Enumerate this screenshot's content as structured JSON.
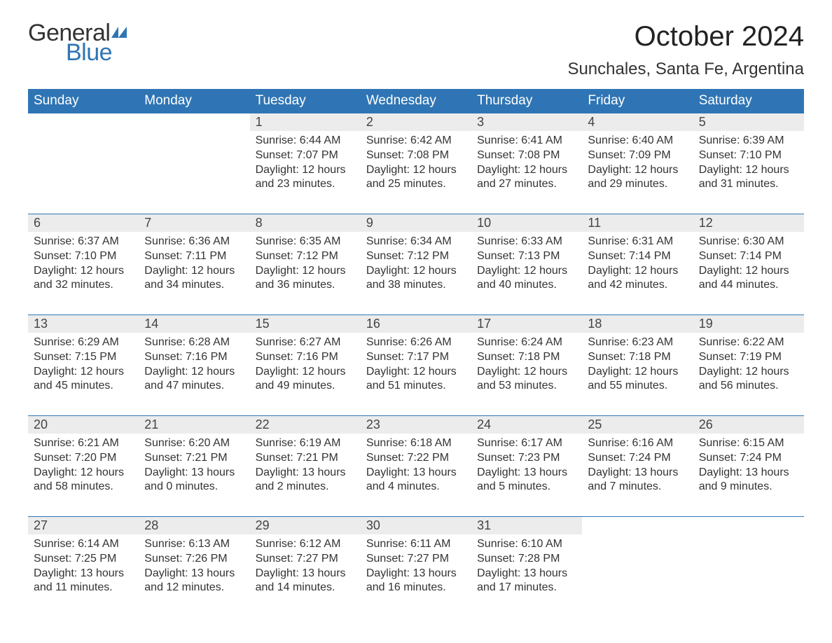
{
  "brand": {
    "word1": "General",
    "word2": "Blue",
    "flag_color": "#2f75b5"
  },
  "header": {
    "month_title": "October 2024",
    "location": "Sunchales, Santa Fe, Argentina"
  },
  "colors": {
    "header_bg": "#2f75b5",
    "header_text": "#ffffff",
    "daynum_bg": "#ececec",
    "daynum_border": "#2f75b5",
    "body_text": "#333333",
    "background": "#ffffff"
  },
  "typography": {
    "month_title_fontsize": 40,
    "location_fontsize": 24,
    "dayheader_fontsize": 19,
    "daynum_fontsize": 18,
    "cell_fontsize": 16
  },
  "calendar": {
    "day_headers": [
      "Sunday",
      "Monday",
      "Tuesday",
      "Wednesday",
      "Thursday",
      "Friday",
      "Saturday"
    ],
    "weeks": [
      [
        null,
        null,
        {
          "n": "1",
          "sunrise": "Sunrise: 6:44 AM",
          "sunset": "Sunset: 7:07 PM",
          "d1": "Daylight: 12 hours",
          "d2": "and 23 minutes."
        },
        {
          "n": "2",
          "sunrise": "Sunrise: 6:42 AM",
          "sunset": "Sunset: 7:08 PM",
          "d1": "Daylight: 12 hours",
          "d2": "and 25 minutes."
        },
        {
          "n": "3",
          "sunrise": "Sunrise: 6:41 AM",
          "sunset": "Sunset: 7:08 PM",
          "d1": "Daylight: 12 hours",
          "d2": "and 27 minutes."
        },
        {
          "n": "4",
          "sunrise": "Sunrise: 6:40 AM",
          "sunset": "Sunset: 7:09 PM",
          "d1": "Daylight: 12 hours",
          "d2": "and 29 minutes."
        },
        {
          "n": "5",
          "sunrise": "Sunrise: 6:39 AM",
          "sunset": "Sunset: 7:10 PM",
          "d1": "Daylight: 12 hours",
          "d2": "and 31 minutes."
        }
      ],
      [
        {
          "n": "6",
          "sunrise": "Sunrise: 6:37 AM",
          "sunset": "Sunset: 7:10 PM",
          "d1": "Daylight: 12 hours",
          "d2": "and 32 minutes."
        },
        {
          "n": "7",
          "sunrise": "Sunrise: 6:36 AM",
          "sunset": "Sunset: 7:11 PM",
          "d1": "Daylight: 12 hours",
          "d2": "and 34 minutes."
        },
        {
          "n": "8",
          "sunrise": "Sunrise: 6:35 AM",
          "sunset": "Sunset: 7:12 PM",
          "d1": "Daylight: 12 hours",
          "d2": "and 36 minutes."
        },
        {
          "n": "9",
          "sunrise": "Sunrise: 6:34 AM",
          "sunset": "Sunset: 7:12 PM",
          "d1": "Daylight: 12 hours",
          "d2": "and 38 minutes."
        },
        {
          "n": "10",
          "sunrise": "Sunrise: 6:33 AM",
          "sunset": "Sunset: 7:13 PM",
          "d1": "Daylight: 12 hours",
          "d2": "and 40 minutes."
        },
        {
          "n": "11",
          "sunrise": "Sunrise: 6:31 AM",
          "sunset": "Sunset: 7:14 PM",
          "d1": "Daylight: 12 hours",
          "d2": "and 42 minutes."
        },
        {
          "n": "12",
          "sunrise": "Sunrise: 6:30 AM",
          "sunset": "Sunset: 7:14 PM",
          "d1": "Daylight: 12 hours",
          "d2": "and 44 minutes."
        }
      ],
      [
        {
          "n": "13",
          "sunrise": "Sunrise: 6:29 AM",
          "sunset": "Sunset: 7:15 PM",
          "d1": "Daylight: 12 hours",
          "d2": "and 45 minutes."
        },
        {
          "n": "14",
          "sunrise": "Sunrise: 6:28 AM",
          "sunset": "Sunset: 7:16 PM",
          "d1": "Daylight: 12 hours",
          "d2": "and 47 minutes."
        },
        {
          "n": "15",
          "sunrise": "Sunrise: 6:27 AM",
          "sunset": "Sunset: 7:16 PM",
          "d1": "Daylight: 12 hours",
          "d2": "and 49 minutes."
        },
        {
          "n": "16",
          "sunrise": "Sunrise: 6:26 AM",
          "sunset": "Sunset: 7:17 PM",
          "d1": "Daylight: 12 hours",
          "d2": "and 51 minutes."
        },
        {
          "n": "17",
          "sunrise": "Sunrise: 6:24 AM",
          "sunset": "Sunset: 7:18 PM",
          "d1": "Daylight: 12 hours",
          "d2": "and 53 minutes."
        },
        {
          "n": "18",
          "sunrise": "Sunrise: 6:23 AM",
          "sunset": "Sunset: 7:18 PM",
          "d1": "Daylight: 12 hours",
          "d2": "and 55 minutes."
        },
        {
          "n": "19",
          "sunrise": "Sunrise: 6:22 AM",
          "sunset": "Sunset: 7:19 PM",
          "d1": "Daylight: 12 hours",
          "d2": "and 56 minutes."
        }
      ],
      [
        {
          "n": "20",
          "sunrise": "Sunrise: 6:21 AM",
          "sunset": "Sunset: 7:20 PM",
          "d1": "Daylight: 12 hours",
          "d2": "and 58 minutes."
        },
        {
          "n": "21",
          "sunrise": "Sunrise: 6:20 AM",
          "sunset": "Sunset: 7:21 PM",
          "d1": "Daylight: 13 hours",
          "d2": "and 0 minutes."
        },
        {
          "n": "22",
          "sunrise": "Sunrise: 6:19 AM",
          "sunset": "Sunset: 7:21 PM",
          "d1": "Daylight: 13 hours",
          "d2": "and 2 minutes."
        },
        {
          "n": "23",
          "sunrise": "Sunrise: 6:18 AM",
          "sunset": "Sunset: 7:22 PM",
          "d1": "Daylight: 13 hours",
          "d2": "and 4 minutes."
        },
        {
          "n": "24",
          "sunrise": "Sunrise: 6:17 AM",
          "sunset": "Sunset: 7:23 PM",
          "d1": "Daylight: 13 hours",
          "d2": "and 5 minutes."
        },
        {
          "n": "25",
          "sunrise": "Sunrise: 6:16 AM",
          "sunset": "Sunset: 7:24 PM",
          "d1": "Daylight: 13 hours",
          "d2": "and 7 minutes."
        },
        {
          "n": "26",
          "sunrise": "Sunrise: 6:15 AM",
          "sunset": "Sunset: 7:24 PM",
          "d1": "Daylight: 13 hours",
          "d2": "and 9 minutes."
        }
      ],
      [
        {
          "n": "27",
          "sunrise": "Sunrise: 6:14 AM",
          "sunset": "Sunset: 7:25 PM",
          "d1": "Daylight: 13 hours",
          "d2": "and 11 minutes."
        },
        {
          "n": "28",
          "sunrise": "Sunrise: 6:13 AM",
          "sunset": "Sunset: 7:26 PM",
          "d1": "Daylight: 13 hours",
          "d2": "and 12 minutes."
        },
        {
          "n": "29",
          "sunrise": "Sunrise: 6:12 AM",
          "sunset": "Sunset: 7:27 PM",
          "d1": "Daylight: 13 hours",
          "d2": "and 14 minutes."
        },
        {
          "n": "30",
          "sunrise": "Sunrise: 6:11 AM",
          "sunset": "Sunset: 7:27 PM",
          "d1": "Daylight: 13 hours",
          "d2": "and 16 minutes."
        },
        {
          "n": "31",
          "sunrise": "Sunrise: 6:10 AM",
          "sunset": "Sunset: 7:28 PM",
          "d1": "Daylight: 13 hours",
          "d2": "and 17 minutes."
        },
        null,
        null
      ]
    ]
  }
}
